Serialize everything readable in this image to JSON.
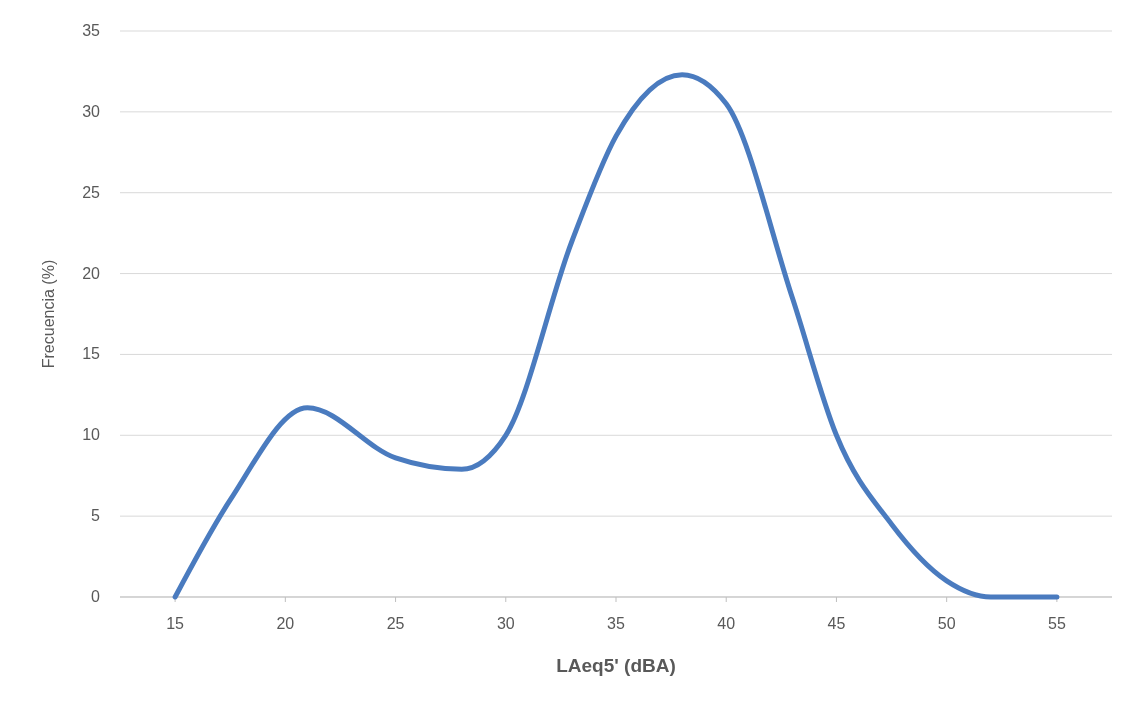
{
  "chart_data": {
    "type": "line",
    "xlabel": "LAeq5' (dBA)",
    "ylabel": "Frecuencia (%)",
    "x": [
      15,
      17.5,
      21,
      25,
      28,
      30,
      33,
      35,
      38,
      40,
      43,
      45,
      47.5,
      50,
      52,
      55
    ],
    "series": [
      {
        "color": "#4a7bbf",
        "values": [
          0,
          6,
          11.7,
          8.6,
          7.9,
          10,
          22,
          28.5,
          32.3,
          30.5,
          18.5,
          10,
          4.5,
          1,
          0,
          0
        ]
      }
    ],
    "xlim": [
      12.5,
      57.5
    ],
    "xticks": [
      15,
      20,
      25,
      30,
      35,
      40,
      45,
      50,
      55
    ],
    "ylim": [
      0,
      35
    ],
    "yticks": [
      0,
      5,
      10,
      15,
      20,
      25,
      30,
      35
    ],
    "grid": "y",
    "marker": "none",
    "line_style": "solid"
  }
}
